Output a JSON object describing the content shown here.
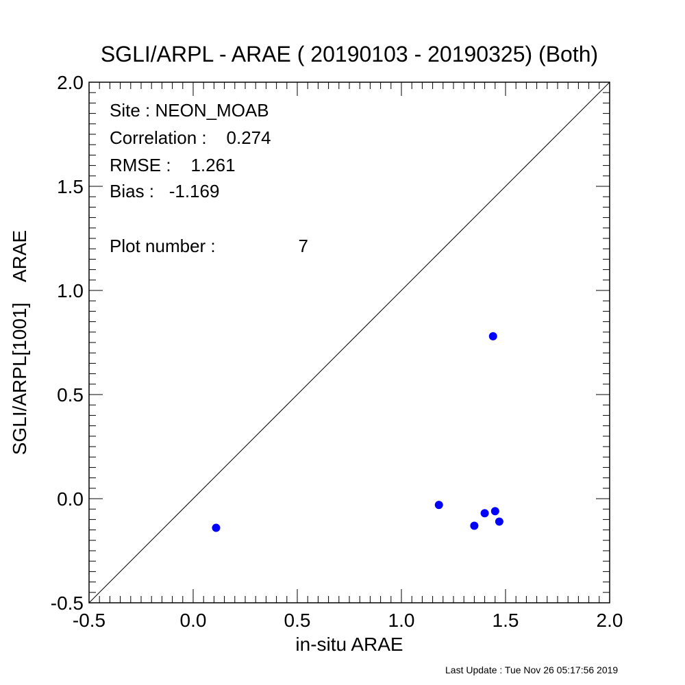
{
  "chart_data": {
    "type": "scatter",
    "title": "SGLI/ARPL - ARAE ( 20190103 - 20190325) (Both)",
    "xlabel": "in-situ ARAE",
    "ylabel": "SGLI/ARPL[1001]    ARAE",
    "xlim": [
      -0.5,
      2.0
    ],
    "ylim": [
      -0.5,
      2.0
    ],
    "xticks": [
      "-0.5",
      "0.0",
      "0.5",
      "1.0",
      "1.5",
      "2.0"
    ],
    "yticks": [
      "-0.5",
      "0.0",
      "0.5",
      "1.0",
      "1.5",
      "2.0"
    ],
    "reference_line": "1:1",
    "grid": false,
    "point_color": "#0000ff",
    "points": [
      {
        "x": 0.11,
        "y": -0.14
      },
      {
        "x": 1.18,
        "y": -0.03
      },
      {
        "x": 1.44,
        "y": 0.78
      },
      {
        "x": 1.35,
        "y": -0.13
      },
      {
        "x": 1.4,
        "y": -0.07
      },
      {
        "x": 1.45,
        "y": -0.06
      },
      {
        "x": 1.47,
        "y": -0.11
      }
    ],
    "annotations": {
      "site": "Site : NEON_MOAB",
      "correlation": "Correlation :    0.274",
      "rmse": "RMSE :    1.261",
      "bias": "Bias :   -1.169",
      "plot_number": "Plot number :",
      "plot_number_value": "7"
    }
  },
  "footer": "Last Update : Tue Nov 26 05:17:56 2019"
}
